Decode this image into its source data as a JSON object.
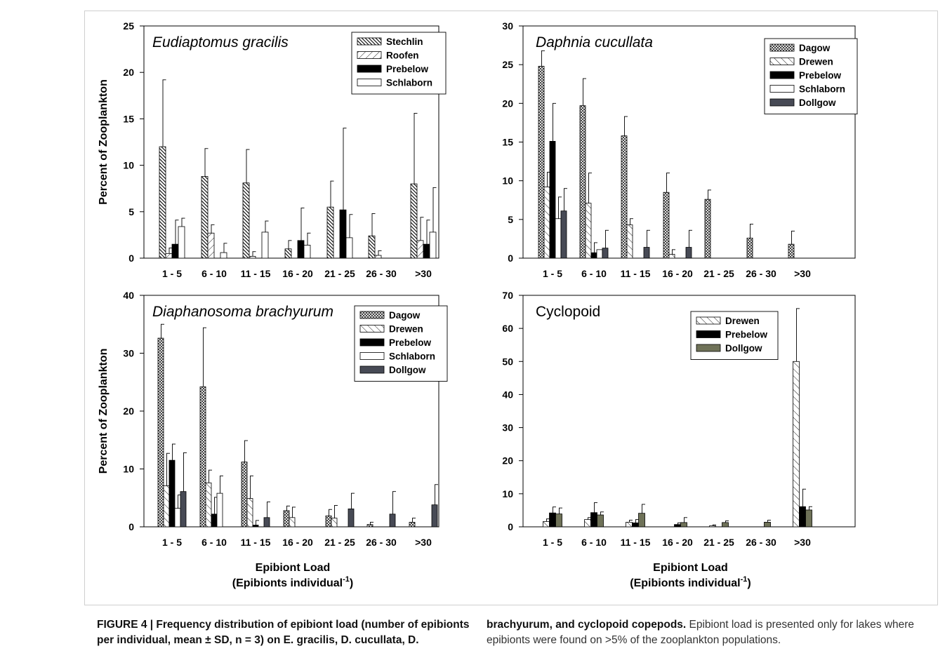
{
  "x_axis_label": "Epibiont Load",
  "x_axis_sublabel_text": "(Epibionts individual",
  "x_axis_sublabel_sup": "-1",
  "x_axis_sublabel_end": ")",
  "y_axis_label": "Percent of Zooplankton",
  "caption": {
    "left": "FIGURE 4 | Frequency distribution of epibiont load (number of epibionts per individual, mean ± SD, n = 3) on E. gracilis, D. cucullata, D.",
    "right_bold": "brachyurum, and cyclopoid copepods.",
    "right_text": " Epibiont load is presented only for lakes where epibionts were found on >5% of the zooplankton populations."
  },
  "lake_styles": {
    "Stechlin": {
      "fill": "#ffffff",
      "pattern": "diag-dense"
    },
    "Roofen": {
      "fill": "#ffffff",
      "pattern": "diag-fwd"
    },
    "Dagow": {
      "fill": "#ffffff",
      "pattern": "crosshatch"
    },
    "Drewen": {
      "fill": "#ffffff",
      "pattern": "diag-back"
    },
    "Prebelow": {
      "fill": "#000000",
      "pattern": "solid"
    },
    "Schlaborn": {
      "fill": "#ffffff",
      "pattern": "solid"
    },
    "Dollgow_dark": {
      "fill": "#474a55",
      "pattern": "solid"
    },
    "Dollgow_olive": {
      "fill": "#6f7258",
      "pattern": "solid"
    }
  },
  "chart_data": [
    {
      "type": "bar",
      "title": "Eudiaptomus gracilis",
      "title_italic": true,
      "categories": [
        "1 - 5",
        "6 - 10",
        "11 - 15",
        "16 - 20",
        "21 - 25",
        "26 - 30",
        ">30"
      ],
      "ylim": [
        0,
        25
      ],
      "yticks": [
        0,
        5,
        10,
        15,
        20,
        25
      ],
      "legend_position": "top-right",
      "series": [
        {
          "name": "Stechlin",
          "style": "Stechlin",
          "values": [
            12.0,
            8.8,
            8.1,
            1.0,
            5.5,
            2.4,
            8.0
          ],
          "sd": [
            7.2,
            3.0,
            3.6,
            0.9,
            2.8,
            2.4,
            7.6
          ]
        },
        {
          "name": "Roofen",
          "style": "Roofen",
          "values": [
            0.5,
            2.7,
            0.2,
            0.0,
            0.0,
            0.3,
            1.9
          ],
          "sd": [
            0.6,
            0.9,
            0.5,
            0.0,
            0.0,
            0.5,
            2.5
          ]
        },
        {
          "name": "Prebelow",
          "style": "Prebelow",
          "values": [
            1.5,
            0.0,
            0.0,
            1.9,
            5.2,
            0.0,
            1.5
          ],
          "sd": [
            2.6,
            0.0,
            0.0,
            3.5,
            8.8,
            0.0,
            2.6
          ]
        },
        {
          "name": "Schlaborn",
          "style": "Schlaborn",
          "values": [
            3.4,
            0.6,
            2.8,
            1.4,
            2.2,
            0.0,
            2.8
          ],
          "sd": [
            0.9,
            1.0,
            1.2,
            1.3,
            2.5,
            0.0,
            4.8
          ]
        }
      ]
    },
    {
      "type": "bar",
      "title": "Daphnia cucullata",
      "title_italic": true,
      "categories": [
        "1 - 5",
        "6 - 10",
        "11 - 15",
        "16 - 20",
        "21 - 25",
        "26 - 30",
        ">30"
      ],
      "ylim": [
        0,
        30
      ],
      "yticks": [
        0,
        5,
        10,
        15,
        20,
        25,
        30
      ],
      "legend_position": "top-right",
      "series": [
        {
          "name": "Dagow",
          "style": "Dagow",
          "values": [
            24.8,
            19.7,
            15.8,
            8.5,
            7.6,
            2.6,
            1.8
          ],
          "sd": [
            2.0,
            3.5,
            2.5,
            2.5,
            1.2,
            1.8,
            1.7
          ]
        },
        {
          "name": "Drewen",
          "style": "Drewen",
          "values": [
            9.2,
            7.1,
            4.3,
            0.5,
            0.0,
            0.0,
            0.0
          ],
          "sd": [
            1.9,
            3.9,
            0.8,
            0.6,
            0.0,
            0.0,
            0.0
          ]
        },
        {
          "name": "Prebelow",
          "style": "Prebelow",
          "values": [
            15.1,
            0.7,
            0.0,
            0.0,
            0.0,
            0.0,
            0.0
          ],
          "sd": [
            4.9,
            1.3,
            0.0,
            0.0,
            0.0,
            0.0,
            0.0
          ]
        },
        {
          "name": "Schlaborn",
          "style": "Schlaborn",
          "values": [
            5.1,
            1.1,
            0.0,
            0.0,
            0.0,
            0.0,
            0.0
          ],
          "sd": [
            2.8,
            0.0,
            0.0,
            0.0,
            0.0,
            0.0,
            0.0
          ]
        },
        {
          "name": "Dollgow",
          "style": "Dollgow_dark",
          "values": [
            6.1,
            1.3,
            1.4,
            1.4,
            0.0,
            0.0,
            0.0
          ],
          "sd": [
            2.9,
            2.3,
            2.2,
            2.2,
            0.0,
            0.0,
            0.0
          ]
        }
      ]
    },
    {
      "type": "bar",
      "title": "Diaphanosoma brachyurum",
      "title_italic": true,
      "categories": [
        "1 - 5",
        "6 - 10",
        "11 - 15",
        "16 - 20",
        "21 - 25",
        "26 - 30",
        ">30"
      ],
      "ylim": [
        0,
        40
      ],
      "yticks": [
        0,
        10,
        20,
        30,
        40
      ],
      "legend_position": "top-right",
      "series": [
        {
          "name": "Dagow",
          "style": "Dagow",
          "values": [
            32.6,
            24.2,
            11.2,
            2.8,
            1.9,
            0.4,
            0.8
          ],
          "sd": [
            2.4,
            10.2,
            3.7,
            0.8,
            1.1,
            0.4,
            0.7
          ]
        },
        {
          "name": "Drewen",
          "style": "Drewen",
          "values": [
            7.1,
            7.6,
            4.9,
            1.6,
            1.5,
            0.0,
            0.0
          ],
          "sd": [
            5.6,
            2.2,
            3.9,
            1.8,
            2.2,
            0.0,
            0.0
          ]
        },
        {
          "name": "Prebelow",
          "style": "Prebelow",
          "values": [
            11.5,
            2.2,
            0.3,
            0.0,
            0.0,
            0.0,
            0.0
          ],
          "sd": [
            2.8,
            2.9,
            0.8,
            0.0,
            0.0,
            0.0,
            0.0
          ]
        },
        {
          "name": "Schlaborn",
          "style": "Schlaborn",
          "values": [
            3.2,
            5.8,
            0.0,
            0.0,
            0.0,
            0.0,
            0.0
          ],
          "sd": [
            2.3,
            3.0,
            0.0,
            0.0,
            0.0,
            0.0,
            0.0
          ]
        },
        {
          "name": "Dollgow",
          "style": "Dollgow_dark",
          "values": [
            6.1,
            0.0,
            1.6,
            0.0,
            3.1,
            2.2,
            3.8
          ],
          "sd": [
            6.7,
            0.0,
            2.7,
            0.0,
            2.7,
            3.9,
            3.5
          ]
        }
      ]
    },
    {
      "type": "bar",
      "title": "Cyclopoid",
      "title_italic": false,
      "categories": [
        "1 - 5",
        "6 - 10",
        "11 - 15",
        "16 - 20",
        "21 - 25",
        "26 - 30",
        ">30"
      ],
      "ylim": [
        0,
        70
      ],
      "yticks": [
        0,
        10,
        20,
        30,
        40,
        50,
        60,
        70
      ],
      "legend_position": "top-right",
      "series": [
        {
          "name": "Drewen",
          "style": "Drewen",
          "values": [
            1.6,
            2.2,
            1.4,
            0.0,
            0.3,
            0.0,
            50.0
          ],
          "sd": [
            0.8,
            0.6,
            0.6,
            0.0,
            0.3,
            0.0,
            16.0
          ]
        },
        {
          "name": "Prebelow",
          "style": "Prebelow",
          "values": [
            4.2,
            4.3,
            1.2,
            0.7,
            0.0,
            0.0,
            6.1
          ],
          "sd": [
            1.8,
            3.0,
            1.0,
            0.5,
            0.0,
            0.0,
            5.3
          ]
        },
        {
          "name": "Dollgow",
          "style": "Dollgow_olive",
          "values": [
            3.9,
            3.6,
            4.1,
            1.3,
            1.3,
            1.4,
            5.1
          ],
          "sd": [
            1.8,
            0.9,
            2.7,
            1.5,
            0.5,
            0.6,
            1.0
          ]
        }
      ]
    }
  ]
}
